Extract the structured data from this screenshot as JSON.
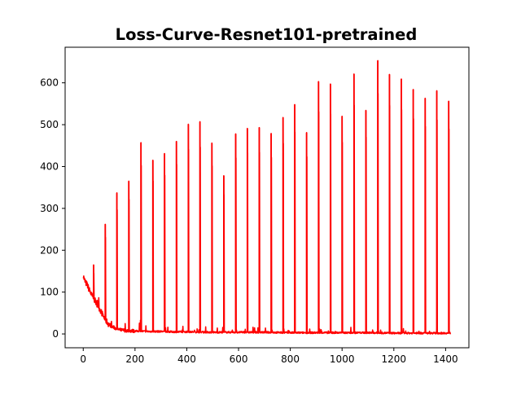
{
  "chart_data": {
    "type": "line",
    "title": "Loss-Curve-Resnet101-pretrained",
    "xlabel": "",
    "ylabel": "",
    "xlim": [
      -70,
      1490
    ],
    "ylim": [
      -33,
      685
    ],
    "x_ticks": [
      0,
      200,
      400,
      600,
      800,
      1000,
      1200,
      1400
    ],
    "y_ticks": [
      0,
      100,
      200,
      300,
      400,
      500,
      600
    ],
    "grid": false,
    "legend": "none",
    "colors": {
      "series": "#ff0000",
      "axes": "#000000",
      "background": "#ffffff"
    },
    "series": [
      {
        "baseline": [
          [
            0,
            140
          ],
          [
            5,
            128
          ],
          [
            10,
            122
          ],
          [
            15,
            118
          ],
          [
            20,
            110
          ],
          [
            25,
            103
          ],
          [
            30,
            96
          ],
          [
            35,
            90
          ],
          [
            40,
            86
          ],
          [
            45,
            80
          ],
          [
            50,
            74
          ],
          [
            55,
            70
          ],
          [
            60,
            64
          ],
          [
            65,
            58
          ],
          [
            70,
            52
          ],
          [
            75,
            46
          ],
          [
            80,
            40
          ],
          [
            85,
            34
          ],
          [
            90,
            30
          ],
          [
            95,
            26
          ],
          [
            100,
            22
          ],
          [
            110,
            18
          ],
          [
            120,
            15
          ],
          [
            130,
            12
          ],
          [
            140,
            10
          ],
          [
            150,
            9
          ],
          [
            170,
            8
          ],
          [
            200,
            7
          ],
          [
            250,
            6
          ],
          [
            300,
            6
          ],
          [
            350,
            5
          ],
          [
            400,
            5
          ],
          [
            500,
            4
          ],
          [
            600,
            4
          ],
          [
            700,
            4
          ],
          [
            800,
            3
          ],
          [
            900,
            3
          ],
          [
            1000,
            3
          ],
          [
            1100,
            3
          ],
          [
            1200,
            2
          ],
          [
            1300,
            2
          ],
          [
            1420,
            2
          ]
        ],
        "spikes": [
          {
            "x": 40,
            "y": 165
          },
          {
            "x": 85,
            "y": 262
          },
          {
            "x": 130,
            "y": 337
          },
          {
            "x": 176,
            "y": 365
          },
          {
            "x": 223,
            "y": 457
          },
          {
            "x": 269,
            "y": 415
          },
          {
            "x": 314,
            "y": 431
          },
          {
            "x": 360,
            "y": 460
          },
          {
            "x": 406,
            "y": 501
          },
          {
            "x": 451,
            "y": 507
          },
          {
            "x": 497,
            "y": 456
          },
          {
            "x": 543,
            "y": 378
          },
          {
            "x": 589,
            "y": 478
          },
          {
            "x": 634,
            "y": 491
          },
          {
            "x": 680,
            "y": 493
          },
          {
            "x": 726,
            "y": 479
          },
          {
            "x": 772,
            "y": 517
          },
          {
            "x": 817,
            "y": 548
          },
          {
            "x": 863,
            "y": 481
          },
          {
            "x": 909,
            "y": 603
          },
          {
            "x": 955,
            "y": 597
          },
          {
            "x": 1000,
            "y": 520
          },
          {
            "x": 1046,
            "y": 621
          },
          {
            "x": 1092,
            "y": 534
          },
          {
            "x": 1138,
            "y": 653
          },
          {
            "x": 1183,
            "y": 620
          },
          {
            "x": 1229,
            "y": 609
          },
          {
            "x": 1275,
            "y": 584
          },
          {
            "x": 1321,
            "y": 563
          },
          {
            "x": 1366,
            "y": 581
          },
          {
            "x": 1412,
            "y": 556
          }
        ]
      }
    ]
  }
}
